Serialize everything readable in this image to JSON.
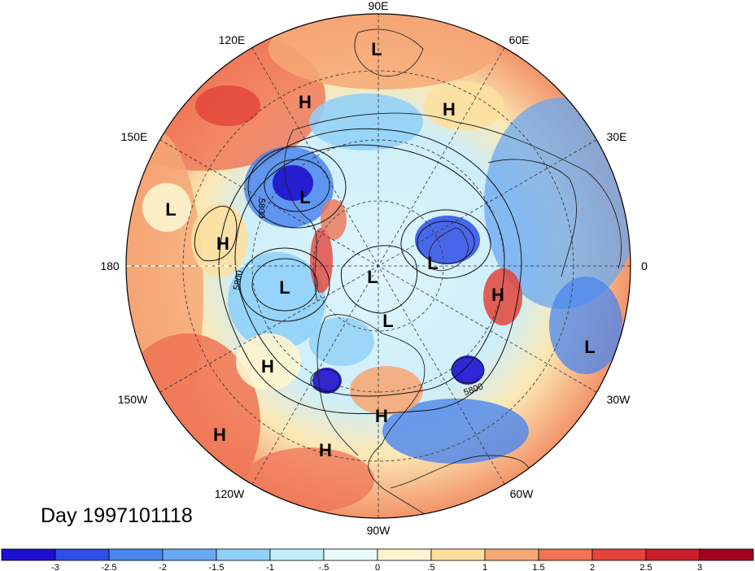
{
  "title": "Day 1997101118",
  "longitude_labels": {
    "lon_90E": "90E",
    "lon_60E": "60E",
    "lon_30E": "30E",
    "lon_0": "0",
    "lon_30W": "30W",
    "lon_60W": "60W",
    "lon_90W": "90W",
    "lon_120W": "120W",
    "lon_150W": "150W",
    "lon_180": "180",
    "lon_150E": "150E",
    "lon_120E": "120E"
  },
  "pressure_centers": [
    {
      "type": "L",
      "label": "L"
    },
    {
      "type": "H",
      "label": "H"
    },
    {
      "type": "H",
      "label": "H"
    },
    {
      "type": "L",
      "label": "L"
    },
    {
      "type": "L",
      "label": "L"
    },
    {
      "type": "H",
      "label": "H"
    },
    {
      "type": "L",
      "label": "L"
    },
    {
      "type": "L",
      "label": "L"
    },
    {
      "type": "L",
      "label": "L"
    },
    {
      "type": "H",
      "label": "H"
    },
    {
      "type": "L",
      "label": "L"
    },
    {
      "type": "H",
      "label": "H"
    },
    {
      "type": "H",
      "label": "H"
    },
    {
      "type": "L",
      "label": "L"
    },
    {
      "type": "H",
      "label": "H"
    },
    {
      "type": "H",
      "label": "H"
    },
    {
      "type": "H",
      "label": "H"
    }
  ],
  "contour_labels": [
    "5800",
    "5800",
    "5800"
  ],
  "colorbar": {
    "ticks": [
      "-3",
      "-2.5",
      "-2",
      "-1.5",
      "-1",
      "-.5",
      "0",
      ".5",
      "1",
      "1.5",
      "2",
      "2.5",
      "3"
    ],
    "colors": [
      "#1e0fd0",
      "#2f4ee6",
      "#4a86ee",
      "#69a8f2",
      "#8fd0f8",
      "#c3f0fb",
      "#e8fcfd",
      "#fdf5cf",
      "#fde0a0",
      "#f6a877",
      "#ef7355",
      "#e3443a",
      "#c81f2b",
      "#a3001f"
    ]
  }
}
